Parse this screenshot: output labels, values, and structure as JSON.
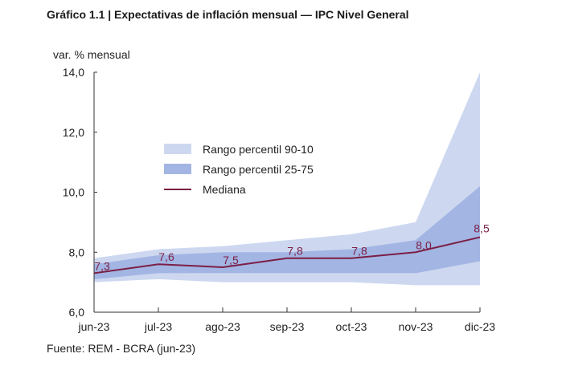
{
  "chart_data": {
    "type": "area",
    "title": "Gráfico 1.1 | Expectativas de inflación mensual — IPC Nivel General",
    "ylabel": "var. % mensual",
    "xlabel": "",
    "ylim": [
      6.0,
      14.0
    ],
    "yticks": [
      "6,0",
      "8,0",
      "10,0",
      "12,0",
      "14,0"
    ],
    "ytick_values": [
      6,
      8,
      10,
      12,
      14
    ],
    "categories": [
      "jun-23",
      "jul-23",
      "ago-23",
      "sep-23",
      "oct-23",
      "nov-23",
      "dic-23"
    ],
    "series": [
      {
        "name": "Rango percentil 90-10",
        "kind": "band",
        "lower": [
          7.0,
          7.1,
          7.0,
          7.0,
          7.0,
          6.9,
          6.9
        ],
        "upper": [
          7.8,
          8.1,
          8.2,
          8.4,
          8.6,
          9.0,
          14.0
        ]
      },
      {
        "name": "Rango percentil 25-75",
        "kind": "band",
        "lower": [
          7.1,
          7.3,
          7.3,
          7.3,
          7.3,
          7.3,
          7.7
        ],
        "upper": [
          7.6,
          7.9,
          8.0,
          8.0,
          8.1,
          8.4,
          10.2
        ]
      },
      {
        "name": "Mediana",
        "kind": "line",
        "values": [
          7.3,
          7.6,
          7.5,
          7.8,
          7.8,
          8.0,
          8.5
        ]
      }
    ],
    "data_labels": [
      "7,3",
      "7,6",
      "7,5",
      "7,8",
      "7,8",
      "8,0",
      "8,5"
    ],
    "legend": [
      "Rango percentil 90-10",
      "Rango percentil 25-75",
      "Mediana"
    ],
    "legend_position": "center-left",
    "grid": false
  },
  "footer": {
    "source": "Fuente: REM - BCRA (jun-23)"
  },
  "colors": {
    "band_outer": "#cdd8f0",
    "band_inner": "#a3b5e3",
    "median": "#7a1f45",
    "axis": "#333333"
  }
}
